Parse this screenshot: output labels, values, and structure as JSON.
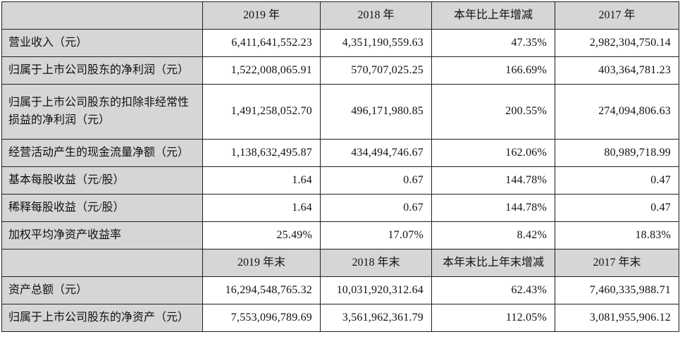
{
  "colors": {
    "header_bg": "#d6d6d6",
    "border": "#1f1f1f",
    "text": "#111111"
  },
  "table": {
    "header_annual": {
      "blank": "",
      "col1": "2019 年",
      "col2": "2018 年",
      "col3": "本年比上年增减",
      "col4": "2017 年"
    },
    "rows_annual": [
      {
        "label": "营业收入（元）",
        "values": [
          "6,411,641,552.23",
          "4,351,190,559.63",
          "47.35%",
          "2,982,304,750.14"
        ]
      },
      {
        "label": "归属于上市公司股东的净利润（元）",
        "values": [
          "1,522,008,065.91",
          "570,707,025.25",
          "166.69%",
          "403,364,781.23"
        ]
      },
      {
        "label": "归属于上市公司股东的扣除非经常性损益的净利润（元）",
        "values": [
          "1,491,258,052.70",
          "496,171,980.85",
          "200.55%",
          "274,094,806.63"
        ]
      },
      {
        "label": "经营活动产生的现金流量净额（元）",
        "values": [
          "1,138,632,495.87",
          "434,494,746.67",
          "162.06%",
          "80,989,718.99"
        ]
      },
      {
        "label": "基本每股收益（元/股）",
        "values": [
          "1.64",
          "0.67",
          "144.78%",
          "0.47"
        ]
      },
      {
        "label": "稀释每股收益（元/股）",
        "values": [
          "1.64",
          "0.67",
          "144.78%",
          "0.47"
        ]
      },
      {
        "label": "加权平均净资产收益率",
        "values": [
          "25.49%",
          "17.07%",
          "8.42%",
          "18.83%"
        ]
      }
    ],
    "header_yearend": {
      "blank": "",
      "col1": "2019 年末",
      "col2": "2018 年末",
      "col3": "本年末比上年末增减",
      "col4": "2017 年末"
    },
    "rows_yearend": [
      {
        "label": "资产总额（元）",
        "values": [
          "16,294,548,765.32",
          "10,031,920,312.64",
          "62.43%",
          "7,460,335,988.71"
        ]
      },
      {
        "label": "归属于上市公司股东的净资产（元）",
        "values": [
          "7,553,096,789.69",
          "3,561,962,361.79",
          "112.05%",
          "3,081,955,906.12"
        ]
      }
    ]
  }
}
